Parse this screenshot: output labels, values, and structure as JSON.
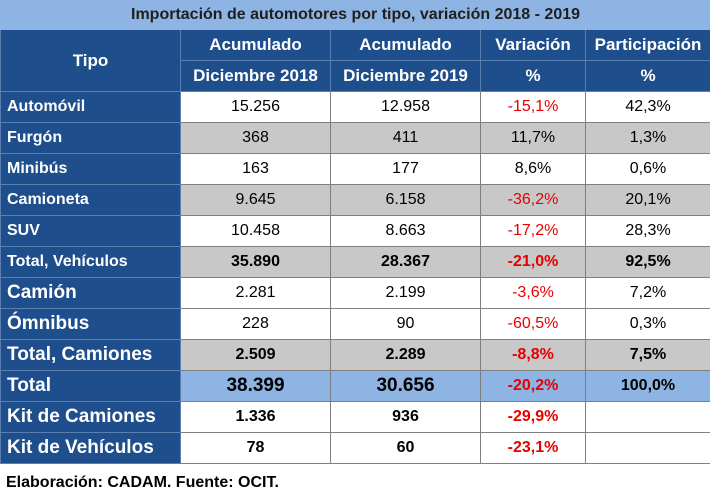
{
  "title": "Importación de automotores por tipo, variación 2018 - 2019",
  "headers": {
    "tipo": "Tipo",
    "col1_top": "Acumulado",
    "col1_bottom": "Diciembre 2018",
    "col2_top": "Acumulado",
    "col2_bottom": "Diciembre 2019",
    "col3_top": "Variación",
    "col3_bottom": "%",
    "col4_top": "Participación",
    "col4_bottom": "%"
  },
  "rows": [
    {
      "tipo": "Automóvil",
      "dic2018": "15.256",
      "dic2019": "12.958",
      "variacion": "-15,1%",
      "participacion": "42,3%"
    },
    {
      "tipo": "Furgón",
      "dic2018": "368",
      "dic2019": "411",
      "variacion": "11,7%",
      "participacion": "1,3%"
    },
    {
      "tipo": "Minibús",
      "dic2018": "163",
      "dic2019": "177",
      "variacion": "8,6%",
      "participacion": "0,6%"
    },
    {
      "tipo": "Camioneta",
      "dic2018": "9.645",
      "dic2019": "6.158",
      "variacion": "-36,2%",
      "participacion": "20,1%"
    },
    {
      "tipo": "SUV",
      "dic2018": "10.458",
      "dic2019": "8.663",
      "variacion": "-17,2%",
      "participacion": "28,3%"
    },
    {
      "tipo": "Total, Vehículos",
      "dic2018": "35.890",
      "dic2019": "28.367",
      "variacion": "-21,0%",
      "participacion": "92,5%"
    },
    {
      "tipo": "Camión",
      "dic2018": "2.281",
      "dic2019": "2.199",
      "variacion": "-3,6%",
      "participacion": "7,2%"
    },
    {
      "tipo": "Ómnibus",
      "dic2018": "228",
      "dic2019": "90",
      "variacion": "-60,5%",
      "participacion": "0,3%"
    },
    {
      "tipo": "Total, Camiones",
      "dic2018": "2.509",
      "dic2019": "2.289",
      "variacion": "-8,8%",
      "participacion": "7,5%"
    },
    {
      "tipo": "Total",
      "dic2018": "38.399",
      "dic2019": "30.656",
      "variacion": "-20,2%",
      "participacion": "100,0%"
    },
    {
      "tipo": "Kit de Camiones",
      "dic2018": "1.336",
      "dic2019": "936",
      "variacion": "-29,9%",
      "participacion": ""
    },
    {
      "tipo": "Kit de Vehículos",
      "dic2018": "78",
      "dic2019": "60",
      "variacion": "-23,1%",
      "participacion": ""
    }
  ],
  "footer": "Elaboración: CADAM. Fuente: OCIT.",
  "colors": {
    "header_bg": "#1f4e8c",
    "title_bg": "#8eb4e3",
    "shade_bg": "#c8c8c8",
    "negative": "#e60000"
  }
}
